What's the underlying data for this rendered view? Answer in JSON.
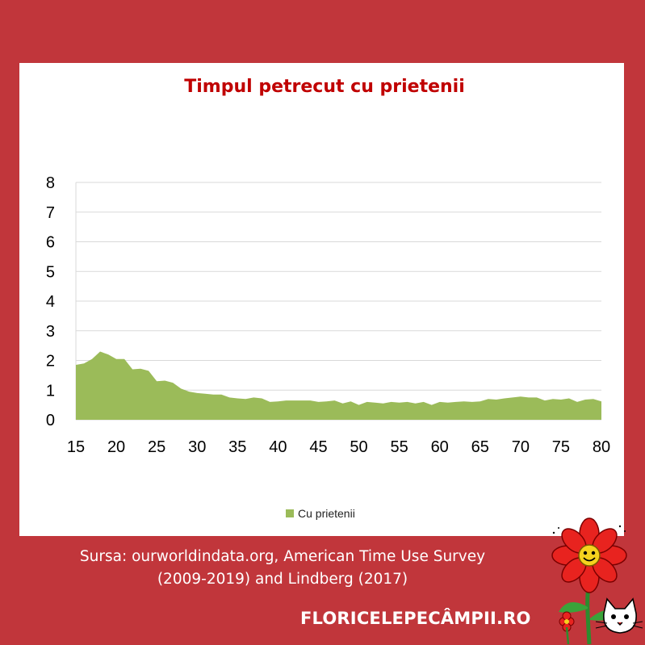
{
  "source": {
    "line1": "Sursa: ourworldindata.org, American Time Use Survey",
    "line2": "(2009-2019) and Lindberg (2017)"
  },
  "site_name": "FLORICELEPECÂMPII.RO",
  "colors": {
    "background": "#c1363b",
    "panel": "#ffffff",
    "title": "#c00000",
    "area_fill": "#9bbb59",
    "grid": "#d9d9d9",
    "text_light": "#ffffff"
  },
  "chart_data": {
    "type": "area",
    "title": "Timpul petrecut cu prietenii",
    "xlabel": "",
    "ylabel": "",
    "xlim": [
      15,
      80
    ],
    "ylim": [
      0,
      8
    ],
    "x_ticks": [
      15,
      20,
      25,
      30,
      35,
      40,
      45,
      50,
      55,
      60,
      65,
      70,
      75,
      80
    ],
    "y_ticks": [
      0,
      1,
      2,
      3,
      4,
      5,
      6,
      7,
      8
    ],
    "grid": "horizontal",
    "legend_position": "bottom",
    "series": [
      {
        "name": "Cu prietenii",
        "color": "#9bbb59",
        "x": [
          15,
          16,
          17,
          18,
          19,
          20,
          21,
          22,
          23,
          24,
          25,
          26,
          27,
          28,
          29,
          30,
          31,
          32,
          33,
          34,
          35,
          36,
          37,
          38,
          39,
          40,
          41,
          42,
          43,
          44,
          45,
          46,
          47,
          48,
          49,
          50,
          51,
          52,
          53,
          54,
          55,
          56,
          57,
          58,
          59,
          60,
          61,
          62,
          63,
          64,
          65,
          66,
          67,
          68,
          69,
          70,
          71,
          72,
          73,
          74,
          75,
          76,
          77,
          78,
          79,
          80
        ],
        "values": [
          1.85,
          1.9,
          2.05,
          2.3,
          2.2,
          2.05,
          2.05,
          1.7,
          1.72,
          1.65,
          1.3,
          1.32,
          1.25,
          1.05,
          0.95,
          0.9,
          0.88,
          0.85,
          0.85,
          0.75,
          0.72,
          0.7,
          0.75,
          0.72,
          0.6,
          0.62,
          0.65,
          0.65,
          0.65,
          0.65,
          0.6,
          0.62,
          0.65,
          0.55,
          0.62,
          0.5,
          0.6,
          0.58,
          0.55,
          0.6,
          0.58,
          0.6,
          0.55,
          0.6,
          0.5,
          0.6,
          0.58,
          0.6,
          0.62,
          0.6,
          0.62,
          0.7,
          0.68,
          0.72,
          0.75,
          0.78,
          0.75,
          0.75,
          0.65,
          0.7,
          0.68,
          0.72,
          0.6,
          0.68,
          0.7,
          0.62
        ]
      }
    ]
  }
}
